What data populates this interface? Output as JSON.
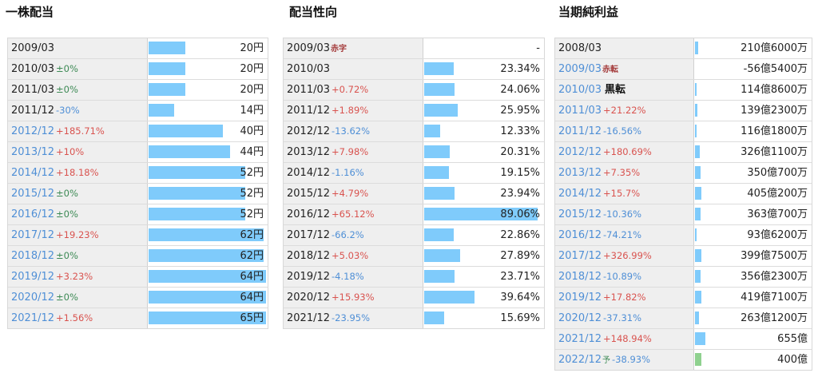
{
  "titles": {
    "dividend": "一株配当",
    "payout": "配当性向",
    "profit": "当期純利益"
  },
  "chart_data": [
    {
      "type": "table",
      "title": "一株配当",
      "unit": "円",
      "rows": [
        {
          "period": "2009/03",
          "change": "",
          "value": 20,
          "value_text": "20円"
        },
        {
          "period": "2010/03",
          "change": "±0%",
          "value": 20,
          "value_text": "20円"
        },
        {
          "period": "2011/03",
          "change": "±0%",
          "value": 20,
          "value_text": "20円"
        },
        {
          "period": "2011/12",
          "change": "-30%",
          "value": 14,
          "value_text": "14円"
        },
        {
          "period": "2012/12",
          "change": "+185.71%",
          "value": 40,
          "value_text": "40円"
        },
        {
          "period": "2013/12",
          "change": "+10%",
          "value": 44,
          "value_text": "44円"
        },
        {
          "period": "2014/12",
          "change": "+18.18%",
          "value": 52,
          "value_text": "52円"
        },
        {
          "period": "2015/12",
          "change": "±0%",
          "value": 52,
          "value_text": "52円"
        },
        {
          "period": "2016/12",
          "change": "±0%",
          "value": 52,
          "value_text": "52円"
        },
        {
          "period": "2017/12",
          "change": "+19.23%",
          "value": 62,
          "value_text": "62円"
        },
        {
          "period": "2018/12",
          "change": "±0%",
          "value": 62,
          "value_text": "62円"
        },
        {
          "period": "2019/12",
          "change": "+3.23%",
          "value": 64,
          "value_text": "64円"
        },
        {
          "period": "2020/12",
          "change": "±0%",
          "value": 64,
          "value_text": "64円"
        },
        {
          "period": "2021/12",
          "change": "+1.56%",
          "value": 65,
          "value_text": "65円"
        }
      ]
    },
    {
      "type": "table",
      "title": "配当性向",
      "unit": "%",
      "rows": [
        {
          "period": "2009/03",
          "change": "",
          "note": "赤字",
          "value": null,
          "value_text": "-"
        },
        {
          "period": "2010/03",
          "change": "",
          "value": 23.34,
          "value_text": "23.34%"
        },
        {
          "period": "2011/03",
          "change": "+0.72%",
          "value": 24.06,
          "value_text": "24.06%"
        },
        {
          "period": "2011/12",
          "change": "+1.89%",
          "value": 25.95,
          "value_text": "25.95%"
        },
        {
          "period": "2012/12",
          "change": "-13.62%",
          "value": 12.33,
          "value_text": "12.33%"
        },
        {
          "period": "2013/12",
          "change": "+7.98%",
          "value": 20.31,
          "value_text": "20.31%"
        },
        {
          "period": "2014/12",
          "change": "-1.16%",
          "value": 19.15,
          "value_text": "19.15%"
        },
        {
          "period": "2015/12",
          "change": "+4.79%",
          "value": 23.94,
          "value_text": "23.94%"
        },
        {
          "period": "2016/12",
          "change": "+65.12%",
          "value": 89.06,
          "value_text": "89.06%"
        },
        {
          "period": "2017/12",
          "change": "-66.2%",
          "value": 22.86,
          "value_text": "22.86%"
        },
        {
          "period": "2018/12",
          "change": "+5.03%",
          "value": 27.89,
          "value_text": "27.89%"
        },
        {
          "period": "2019/12",
          "change": "-4.18%",
          "value": 23.71,
          "value_text": "23.71%"
        },
        {
          "period": "2020/12",
          "change": "+15.93%",
          "value": 39.64,
          "value_text": "39.64%"
        },
        {
          "period": "2021/12",
          "change": "-23.95%",
          "value": 15.69,
          "value_text": "15.69%"
        }
      ]
    },
    {
      "type": "table",
      "title": "当期純利益",
      "unit": "億円",
      "rows": [
        {
          "period": "2008/03",
          "change": "",
          "value": 210.6,
          "value_text": "210億6000万"
        },
        {
          "period": "2009/03",
          "change": "",
          "note": "赤転",
          "value": -56.54,
          "value_text": "-56億5400万"
        },
        {
          "period": "2010/03",
          "change": "",
          "note": "黒転",
          "value": 114.86,
          "value_text": "114億8600万"
        },
        {
          "period": "2011/03",
          "change": "+21.22%",
          "value": 139.23,
          "value_text": "139億2300万"
        },
        {
          "period": "2011/12",
          "change": "-16.56%",
          "value": 116.18,
          "value_text": "116億1800万"
        },
        {
          "period": "2012/12",
          "change": "+180.69%",
          "value": 326.11,
          "value_text": "326億1100万"
        },
        {
          "period": "2013/12",
          "change": "+7.35%",
          "value": 350.07,
          "value_text": "350億700万"
        },
        {
          "period": "2014/12",
          "change": "+15.7%",
          "value": 405.02,
          "value_text": "405億200万"
        },
        {
          "period": "2015/12",
          "change": "-10.36%",
          "value": 363.07,
          "value_text": "363億700万"
        },
        {
          "period": "2016/12",
          "change": "-74.21%",
          "value": 93.62,
          "value_text": "93億6200万"
        },
        {
          "period": "2017/12",
          "change": "+326.99%",
          "value": 399.75,
          "value_text": "399億7500万"
        },
        {
          "period": "2018/12",
          "change": "-10.89%",
          "value": 356.23,
          "value_text": "356億2300万"
        },
        {
          "period": "2019/12",
          "change": "+17.82%",
          "value": 419.71,
          "value_text": "419億7100万"
        },
        {
          "period": "2020/12",
          "change": "-37.31%",
          "value": 263.12,
          "value_text": "263億1200万"
        },
        {
          "period": "2021/12",
          "change": "+148.94%",
          "value": 655,
          "value_text": "655億"
        },
        {
          "period": "2022/12",
          "change": "-38.93%",
          "note": "予",
          "estimate": true,
          "value": 400,
          "value_text": "400億"
        }
      ]
    }
  ],
  "colors": {
    "bar": "#7fcbfb",
    "bar_estimate": "#8fd18f",
    "label_bg": "#efefef",
    "positive_change": "#d9534f",
    "negative_change": "#4f8fd6",
    "zero_change": "#3d8a55",
    "note_red": "#a43a3a"
  }
}
